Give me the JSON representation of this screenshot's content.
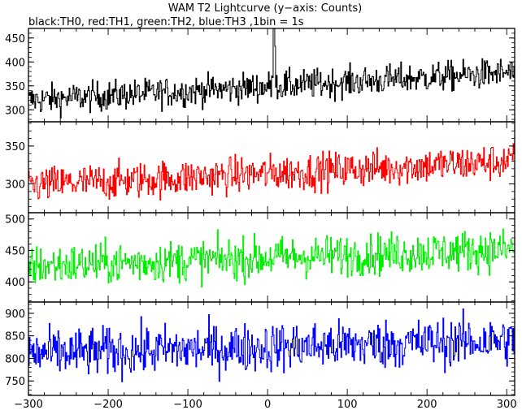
{
  "chart_data": {
    "type": "line",
    "title": "WAM T2 Lightcurve (y−axis: Counts)",
    "subtitle": "black:TH0, red:TH1, green:TH2, blue:TH3 ,1bin = 1s",
    "ylabel_note": "Counts",
    "bin_seconds": 1,
    "xlim": [
      -300,
      310
    ],
    "x_ticks": [
      -300,
      -200,
      -100,
      0,
      100,
      200,
      300
    ],
    "x_tick_labels": [
      "−300",
      "−200",
      "−100",
      "0",
      "100",
      "200",
      "300"
    ],
    "grid": false,
    "panels": [
      {
        "name": "TH0",
        "color": "#000000",
        "ylim": [
          275,
          470
        ],
        "y_ticks": [
          300,
          350,
          400,
          450
        ],
        "baseline_start": 320,
        "baseline_end": 378,
        "noise": 22,
        "burst": {
          "x": 8,
          "peak": 470,
          "width": 1.5
        }
      },
      {
        "name": "TH1",
        "color": "#ff0000",
        "ylim": [
          262,
          382
        ],
        "y_ticks": [
          300,
          350
        ],
        "baseline_start": 298,
        "baseline_end": 330,
        "noise": 17
      },
      {
        "name": "TH2",
        "color": "#00ee00",
        "ylim": [
          368,
          510
        ],
        "y_ticks": [
          400,
          450,
          500
        ],
        "baseline_start": 425,
        "baseline_end": 452,
        "noise": 23
      },
      {
        "name": "TH3",
        "color": "#0000ff",
        "ylim": [
          718,
          925
        ],
        "y_ticks": [
          750,
          800,
          850,
          900
        ],
        "baseline_start": 810,
        "baseline_end": 840,
        "noise": 38
      }
    ]
  }
}
